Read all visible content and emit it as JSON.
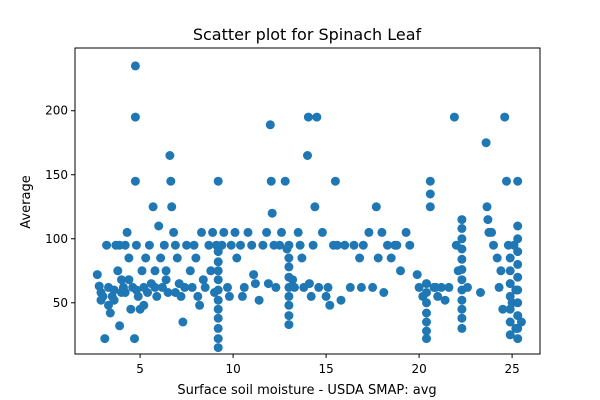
{
  "chart_data": {
    "type": "scatter",
    "title": "Scatter plot for Spinach Leaf",
    "xlabel": "Surface soil moisture - USDA SMAP: avg",
    "ylabel": "Average",
    "xlim": [
      1.5,
      26.5
    ],
    "ylim": [
      10,
      249
    ],
    "xticks": [
      5,
      10,
      15,
      20,
      25
    ],
    "yticks": [
      50,
      100,
      150,
      200
    ],
    "grid": false,
    "color": "#1f77b4",
    "points": [
      [
        2.7,
        72
      ],
      [
        2.8,
        63
      ],
      [
        2.9,
        58
      ],
      [
        3.0,
        55
      ],
      [
        3.1,
        22
      ],
      [
        3.2,
        95
      ],
      [
        3.3,
        62
      ],
      [
        3.4,
        42
      ],
      [
        3.5,
        55
      ],
      [
        3.6,
        60
      ],
      [
        3.7,
        95
      ],
      [
        3.8,
        75
      ],
      [
        3.9,
        32
      ],
      [
        4.0,
        58
      ],
      [
        4.1,
        62
      ],
      [
        4.2,
        95
      ],
      [
        4.3,
        105
      ],
      [
        4.4,
        85
      ],
      [
        4.5,
        45
      ],
      [
        4.6,
        62
      ],
      [
        4.7,
        22
      ],
      [
        4.75,
        235
      ],
      [
        4.75,
        195
      ],
      [
        4.75,
        145
      ],
      [
        4.8,
        95
      ],
      [
        4.8,
        60
      ],
      [
        4.9,
        55
      ],
      [
        5.0,
        45
      ],
      [
        5.1,
        75
      ],
      [
        5.2,
        62
      ],
      [
        5.3,
        85
      ],
      [
        5.4,
        58
      ],
      [
        5.5,
        95
      ],
      [
        5.6,
        65
      ],
      [
        5.7,
        125
      ],
      [
        5.8,
        75
      ],
      [
        5.9,
        55
      ],
      [
        6.0,
        110
      ],
      [
        6.1,
        85
      ],
      [
        6.2,
        62
      ],
      [
        6.3,
        95
      ],
      [
        6.4,
        75
      ],
      [
        6.5,
        58
      ],
      [
        6.6,
        165
      ],
      [
        6.65,
        145
      ],
      [
        6.7,
        125
      ],
      [
        6.8,
        105
      ],
      [
        6.9,
        95
      ],
      [
        7.0,
        85
      ],
      [
        7.1,
        65
      ],
      [
        7.2,
        55
      ],
      [
        7.3,
        35
      ],
      [
        7.5,
        95
      ],
      [
        7.7,
        75
      ],
      [
        7.8,
        62
      ],
      [
        7.9,
        95
      ],
      [
        8.0,
        85
      ],
      [
        8.1,
        55
      ],
      [
        8.2,
        48
      ],
      [
        8.3,
        105
      ],
      [
        8.5,
        62
      ],
      [
        8.7,
        95
      ],
      [
        8.8,
        75
      ],
      [
        8.9,
        105
      ],
      [
        9.0,
        58
      ],
      [
        9.1,
        95
      ],
      [
        9.2,
        90
      ],
      [
        9.2,
        82
      ],
      [
        9.2,
        75
      ],
      [
        9.2,
        68
      ],
      [
        9.2,
        60
      ],
      [
        9.2,
        52
      ],
      [
        9.2,
        45
      ],
      [
        9.2,
        38
      ],
      [
        9.2,
        30
      ],
      [
        9.2,
        22
      ],
      [
        9.2,
        15
      ],
      [
        9.2,
        145
      ],
      [
        9.4,
        95
      ],
      [
        9.5,
        105
      ],
      [
        9.7,
        62
      ],
      [
        9.9,
        95
      ],
      [
        10.1,
        105
      ],
      [
        10.2,
        85
      ],
      [
        10.4,
        95
      ],
      [
        10.6,
        62
      ],
      [
        10.8,
        105
      ],
      [
        11.0,
        95
      ],
      [
        11.2,
        65
      ],
      [
        11.4,
        52
      ],
      [
        11.6,
        95
      ],
      [
        11.8,
        105
      ],
      [
        11.9,
        65
      ],
      [
        12.0,
        189
      ],
      [
        12.05,
        145
      ],
      [
        12.1,
        120
      ],
      [
        12.2,
        95
      ],
      [
        12.3,
        62
      ],
      [
        12.5,
        95
      ],
      [
        12.6,
        105
      ],
      [
        12.8,
        145
      ],
      [
        13.0,
        95
      ],
      [
        13.0,
        85
      ],
      [
        13.0,
        78
      ],
      [
        13.0,
        70
      ],
      [
        13.0,
        62
      ],
      [
        13.0,
        55
      ],
      [
        13.0,
        48
      ],
      [
        13.0,
        40
      ],
      [
        13.0,
        33
      ],
      [
        13.3,
        62
      ],
      [
        13.5,
        105
      ],
      [
        13.6,
        95
      ],
      [
        13.7,
        85
      ],
      [
        13.8,
        62
      ],
      [
        14.0,
        165
      ],
      [
        14.05,
        195
      ],
      [
        14.1,
        65
      ],
      [
        14.3,
        95
      ],
      [
        14.4,
        125
      ],
      [
        14.5,
        195
      ],
      [
        14.6,
        62
      ],
      [
        14.8,
        105
      ],
      [
        15.0,
        55
      ],
      [
        15.2,
        48
      ],
      [
        15.4,
        95
      ],
      [
        15.5,
        145
      ],
      [
        15.6,
        95
      ],
      [
        15.8,
        52
      ],
      [
        16.0,
        95
      ],
      [
        16.3,
        62
      ],
      [
        16.5,
        95
      ],
      [
        16.8,
        85
      ],
      [
        17.0,
        95
      ],
      [
        17.3,
        105
      ],
      [
        17.5,
        62
      ],
      [
        17.7,
        125
      ],
      [
        17.8,
        85
      ],
      [
        18.0,
        105
      ],
      [
        18.1,
        58
      ],
      [
        18.3,
        95
      ],
      [
        18.5,
        85
      ],
      [
        18.7,
        95
      ],
      [
        19.0,
        75
      ],
      [
        19.3,
        105
      ],
      [
        19.5,
        95
      ],
      [
        20.0,
        62
      ],
      [
        20.2,
        55
      ],
      [
        20.4,
        65
      ],
      [
        20.4,
        58
      ],
      [
        20.4,
        50
      ],
      [
        20.4,
        42
      ],
      [
        20.4,
        35
      ],
      [
        20.4,
        28
      ],
      [
        20.4,
        22
      ],
      [
        20.6,
        145
      ],
      [
        20.6,
        135
      ],
      [
        20.6,
        125
      ],
      [
        20.8,
        62
      ],
      [
        21.0,
        55
      ],
      [
        21.2,
        62
      ],
      [
        21.4,
        52
      ],
      [
        21.9,
        195
      ],
      [
        22.0,
        95
      ],
      [
        22.1,
        75
      ],
      [
        22.3,
        115
      ],
      [
        22.3,
        108
      ],
      [
        22.3,
        100
      ],
      [
        22.3,
        92
      ],
      [
        22.3,
        84
      ],
      [
        22.3,
        76
      ],
      [
        22.3,
        68
      ],
      [
        22.3,
        60
      ],
      [
        22.3,
        52
      ],
      [
        22.3,
        45
      ],
      [
        22.3,
        38
      ],
      [
        22.3,
        30
      ],
      [
        23.3,
        58
      ],
      [
        23.6,
        175
      ],
      [
        23.65,
        125
      ],
      [
        23.7,
        115
      ],
      [
        23.75,
        105
      ],
      [
        24.0,
        95
      ],
      [
        24.2,
        85
      ],
      [
        24.4,
        75
      ],
      [
        24.6,
        195
      ],
      [
        24.7,
        145
      ],
      [
        24.8,
        95
      ],
      [
        24.9,
        85
      ],
      [
        24.9,
        75
      ],
      [
        24.9,
        65
      ],
      [
        24.9,
        55
      ],
      [
        24.9,
        45
      ],
      [
        24.9,
        35
      ],
      [
        24.9,
        25
      ],
      [
        25.1,
        95
      ],
      [
        25.2,
        60
      ],
      [
        25.2,
        30
      ],
      [
        25.3,
        145
      ],
      [
        25.3,
        110
      ],
      [
        25.3,
        100
      ],
      [
        25.3,
        90
      ],
      [
        25.3,
        80
      ],
      [
        25.3,
        70
      ],
      [
        25.3,
        60
      ],
      [
        25.3,
        50
      ],
      [
        25.3,
        40
      ],
      [
        25.3,
        30
      ],
      [
        25.3,
        22
      ],
      [
        2.9,
        52
      ],
      [
        3.3,
        48
      ],
      [
        3.6,
        52
      ],
      [
        4.0,
        68
      ],
      [
        4.4,
        68
      ],
      [
        5.2,
        48
      ],
      [
        5.8,
        62
      ],
      [
        6.4,
        68
      ],
      [
        6.9,
        58
      ],
      [
        7.4,
        62
      ],
      [
        8.4,
        68
      ],
      [
        9.8,
        55
      ],
      [
        10.5,
        55
      ],
      [
        11.1,
        72
      ],
      [
        12.9,
        92
      ],
      [
        13.2,
        68
      ],
      [
        14.2,
        55
      ],
      [
        15.1,
        62
      ],
      [
        16.9,
        62
      ],
      [
        18.8,
        95
      ],
      [
        19.9,
        72
      ],
      [
        20.9,
        62
      ],
      [
        21.6,
        62
      ],
      [
        22.6,
        62
      ],
      [
        23.9,
        105
      ],
      [
        24.3,
        62
      ],
      [
        24.5,
        45
      ],
      [
        25.0,
        50
      ],
      [
        25.5,
        35
      ],
      [
        3.9,
        95
      ],
      [
        4.2,
        58
      ]
    ]
  }
}
